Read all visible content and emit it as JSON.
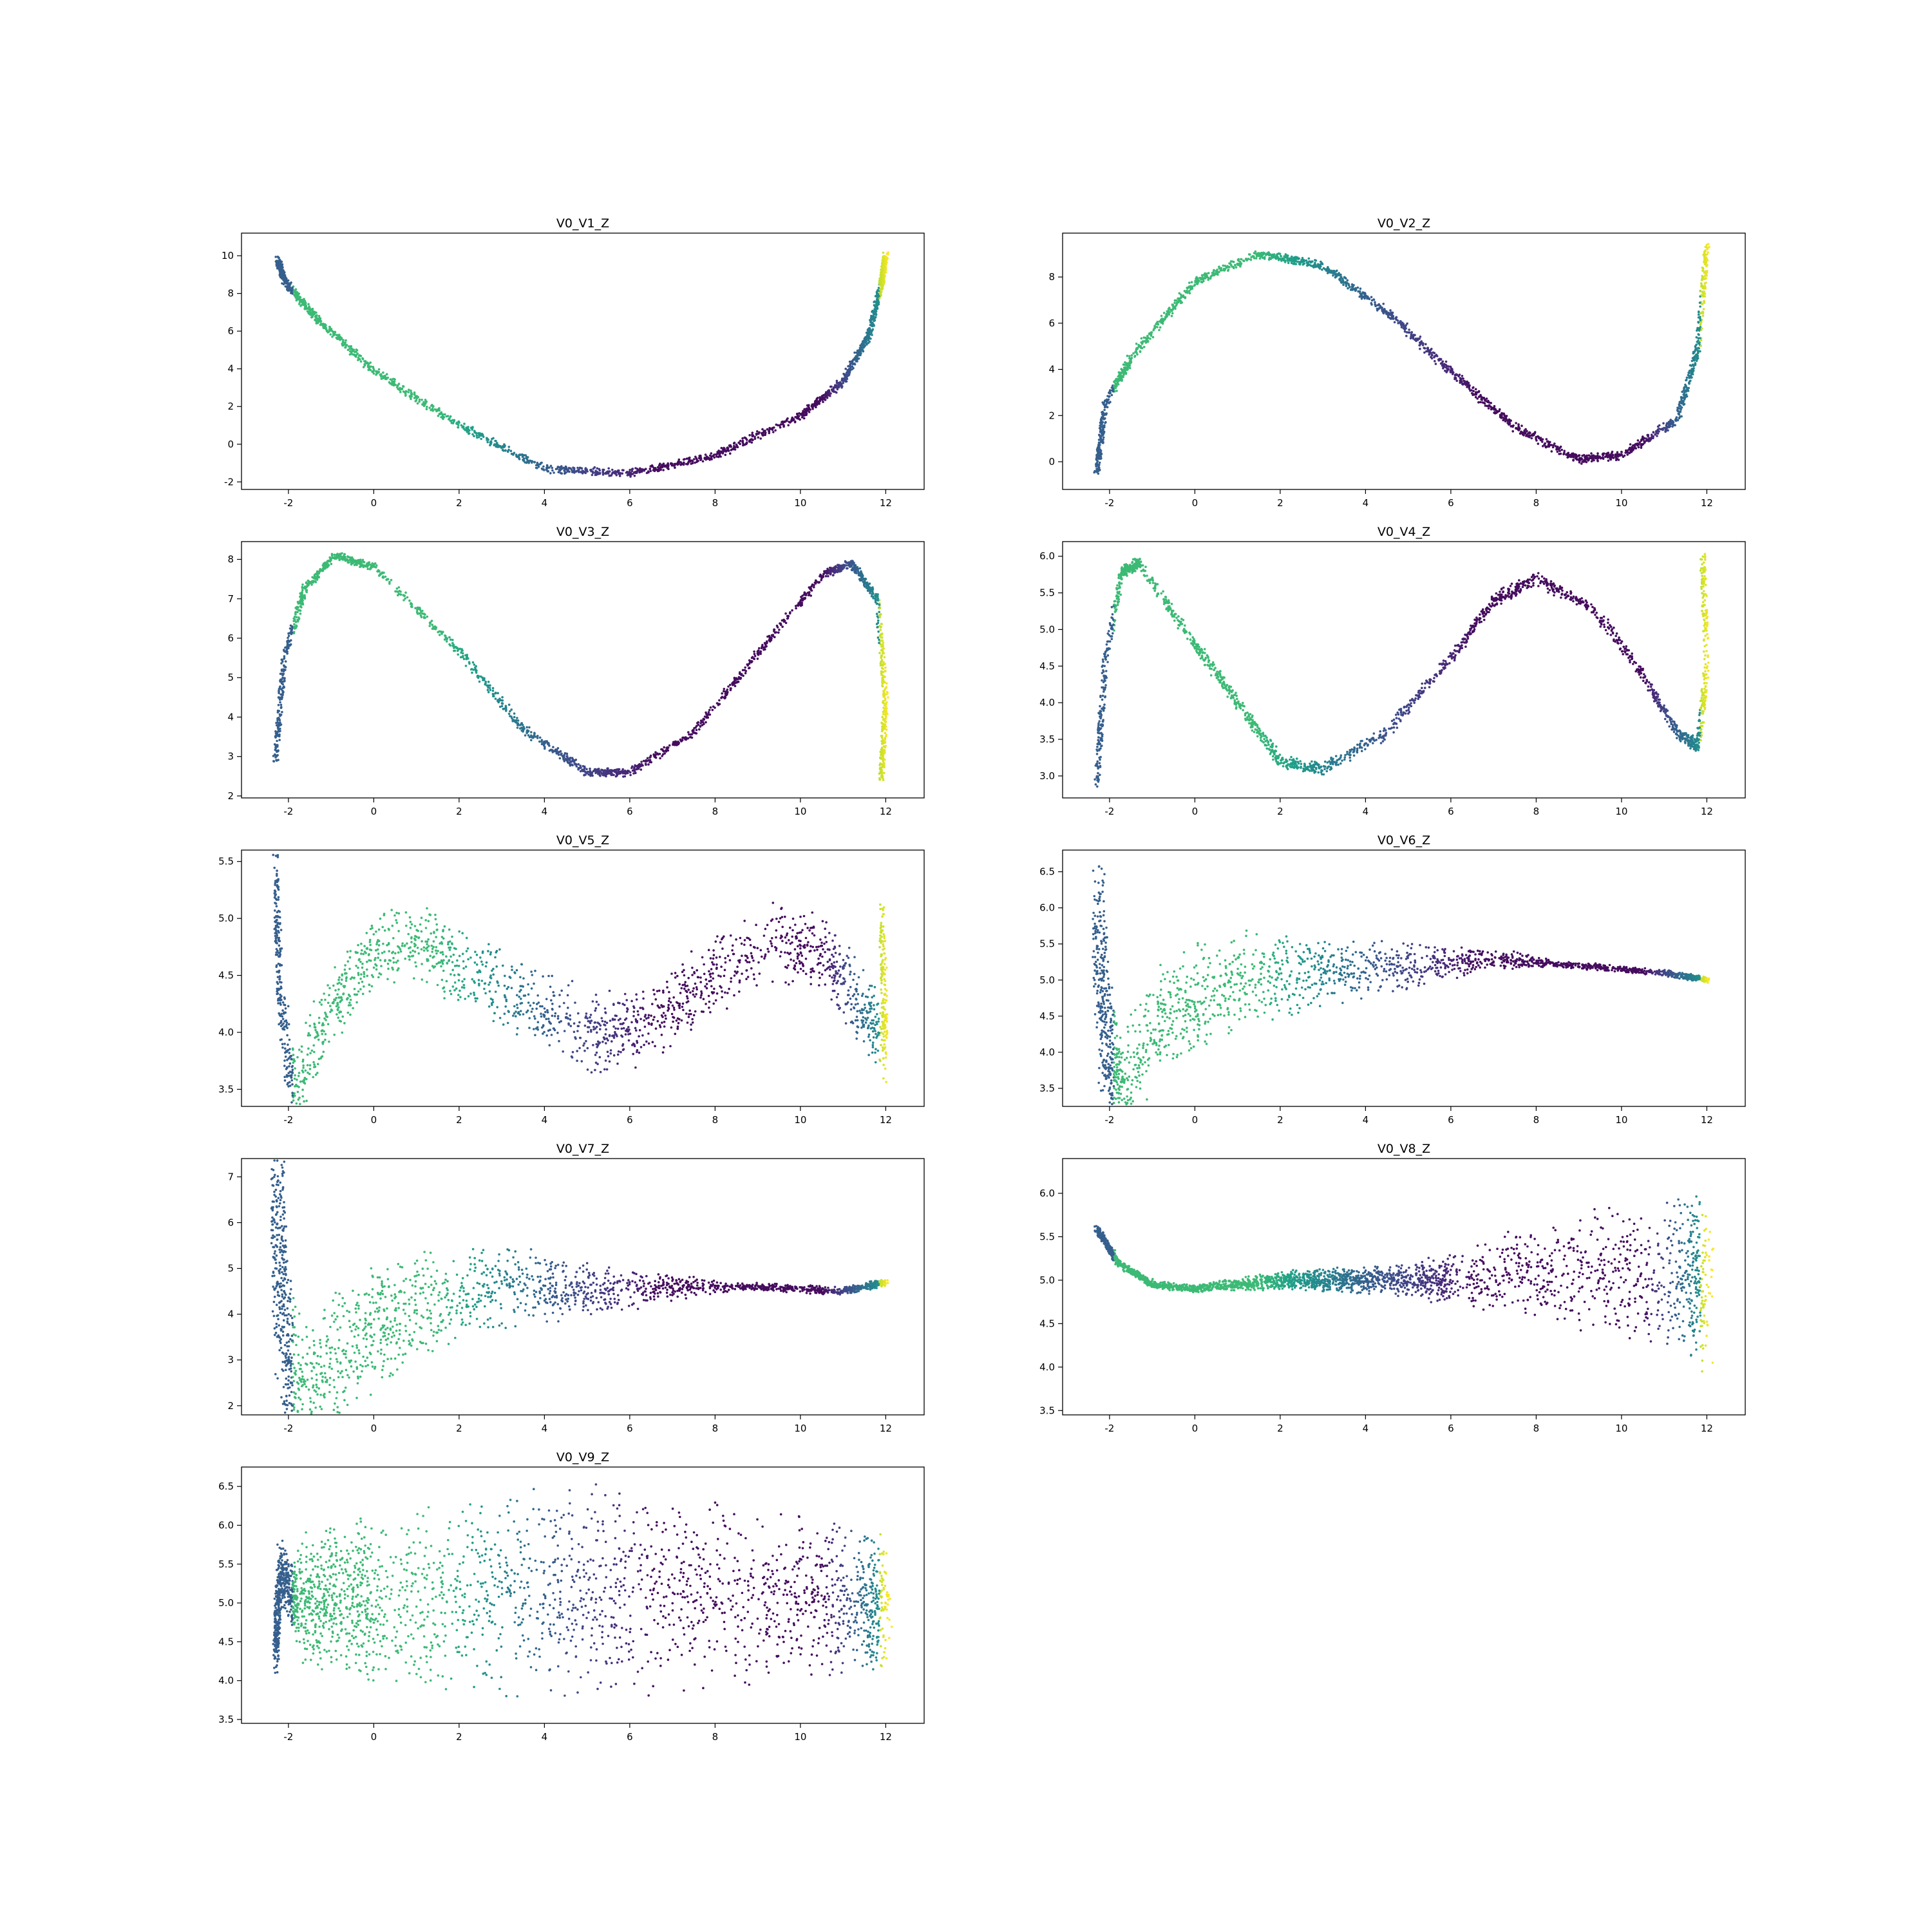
{
  "chart_data": [
    {
      "type": "scatter",
      "title": "V0_V1_Z",
      "xticks": [
        "-2",
        "0",
        "2",
        "4",
        "6",
        "8",
        "10",
        "12"
      ],
      "yticks": [
        "-2",
        "0",
        "2",
        "4",
        "6",
        "8",
        "10"
      ],
      "xlim": [
        -3.1,
        12.9
      ],
      "ylim": [
        -2.4,
        11.2
      ],
      "curve": [
        [
          -2.25,
          9.8
        ],
        [
          -2.1,
          8.7
        ],
        [
          -1.4,
          6.8
        ],
        [
          0,
          3.9
        ],
        [
          2,
          1.0
        ],
        [
          4,
          -1.3
        ],
        [
          6,
          -1.55
        ],
        [
          8,
          -0.6
        ],
        [
          10,
          1.5
        ],
        [
          11,
          3.3
        ],
        [
          11.6,
          5.8
        ],
        [
          11.9,
          8.5
        ],
        [
          12,
          10.1
        ]
      ],
      "spread": 0.25
    },
    {
      "type": "scatter",
      "title": "V0_V2_Z",
      "xticks": [
        "-2",
        "0",
        "2",
        "4",
        "6",
        "8",
        "10",
        "12"
      ],
      "yticks": [
        "0",
        "2",
        "4",
        "6",
        "8"
      ],
      "xlim": [
        -3.1,
        12.9
      ],
      "ylim": [
        -1.2,
        9.9
      ],
      "curve": [
        [
          -2.3,
          -0.5
        ],
        [
          -2.1,
          2.5
        ],
        [
          -1.5,
          4.5
        ],
        [
          0,
          7.8
        ],
        [
          1.5,
          9.0
        ],
        [
          3,
          8.5
        ],
        [
          4.5,
          6.5
        ],
        [
          6,
          3.9
        ],
        [
          7.5,
          1.5
        ],
        [
          9,
          0.1
        ],
        [
          10,
          0.3
        ],
        [
          11.3,
          1.8
        ],
        [
          11.8,
          5.0
        ],
        [
          12,
          9.4
        ]
      ],
      "spread": 0.22
    },
    {
      "type": "scatter",
      "title": "V0_V3_Z",
      "xticks": [
        "-2",
        "0",
        "2",
        "4",
        "6",
        "8",
        "10",
        "12"
      ],
      "yticks": [
        "2",
        "3",
        "4",
        "5",
        "6",
        "7",
        "8"
      ],
      "xlim": [
        -3.1,
        12.9
      ],
      "ylim": [
        1.95,
        8.45
      ],
      "curve": [
        [
          -2.3,
          2.9
        ],
        [
          -2.1,
          5.5
        ],
        [
          -1.6,
          7.3
        ],
        [
          -0.9,
          8.1
        ],
        [
          0,
          7.8
        ],
        [
          2,
          5.7
        ],
        [
          3.5,
          3.7
        ],
        [
          5,
          2.6
        ],
        [
          6,
          2.6
        ],
        [
          7.5,
          3.6
        ],
        [
          9,
          5.6
        ],
        [
          10.5,
          7.6
        ],
        [
          11.2,
          7.9
        ],
        [
          11.8,
          7.0
        ],
        [
          12,
          4.5
        ],
        [
          11.9,
          2.4
        ]
      ],
      "spread": 0.12
    },
    {
      "type": "scatter",
      "title": "V0_V4_Z",
      "xticks": [
        "-2",
        "0",
        "2",
        "4",
        "6",
        "8",
        "10",
        "12"
      ],
      "yticks": [
        "3.0",
        "3.5",
        "4.0",
        "4.5",
        "5.0",
        "5.5",
        "6.0"
      ],
      "xlim": [
        -3.1,
        12.9
      ],
      "ylim": [
        2.7,
        6.2
      ],
      "curve": [
        [
          -2.3,
          2.9
        ],
        [
          -2.1,
          4.6
        ],
        [
          -1.7,
          5.8
        ],
        [
          -1.3,
          5.9
        ],
        [
          0,
          4.8
        ],
        [
          1,
          4.0
        ],
        [
          2,
          3.2
        ],
        [
          3,
          3.1
        ],
        [
          4.5,
          3.6
        ],
        [
          6,
          4.6
        ],
        [
          7,
          5.4
        ],
        [
          8,
          5.7
        ],
        [
          9.3,
          5.3
        ],
        [
          10.5,
          4.4
        ],
        [
          11.3,
          3.6
        ],
        [
          11.8,
          3.4
        ],
        [
          12,
          4.5
        ],
        [
          11.9,
          6.0
        ]
      ],
      "spread": 0.1
    },
    {
      "type": "scatter",
      "title": "V0_V5_Z",
      "xticks": [
        "-2",
        "0",
        "2",
        "4",
        "6",
        "8",
        "10",
        "12"
      ],
      "yticks": [
        "3.5",
        "4.0",
        "4.5",
        "5.0",
        "5.5"
      ],
      "xlim": [
        -3.1,
        12.9
      ],
      "ylim": [
        3.35,
        5.6
      ],
      "curve": [
        [
          -2.3,
          5.5
        ],
        [
          -2.2,
          4.3
        ],
        [
          -1.9,
          3.5
        ],
        [
          -1,
          4.2
        ],
        [
          0,
          4.7
        ],
        [
          1,
          4.8
        ],
        [
          2,
          4.6
        ],
        [
          3.5,
          4.3
        ],
        [
          5,
          4.0
        ],
        [
          6,
          4.0
        ],
        [
          7,
          4.2
        ],
        [
          8,
          4.5
        ],
        [
          9.5,
          4.8
        ],
        [
          10.5,
          4.7
        ],
        [
          11.3,
          4.3
        ],
        [
          12,
          3.9
        ],
        [
          11.9,
          5.0
        ]
      ],
      "spread": 0.38
    },
    {
      "type": "scatter",
      "title": "V0_V6_Z",
      "xticks": [
        "-2",
        "0",
        "2",
        "4",
        "6",
        "8",
        "10",
        "12"
      ],
      "yticks": [
        "3.5",
        "4.0",
        "4.5",
        "5.0",
        "5.5",
        "6.0",
        "6.5"
      ],
      "xlim": [
        -3.1,
        12.9
      ],
      "ylim": [
        3.25,
        6.8
      ],
      "curve": [
        [
          -2.3,
          6.2
        ],
        [
          -2.1,
          4.2
        ],
        [
          -1.8,
          3.5
        ],
        [
          -0.5,
          4.6
        ],
        [
          1,
          5.0
        ],
        [
          3,
          5.1
        ],
        [
          5,
          5.2
        ],
        [
          7,
          5.3
        ],
        [
          9,
          5.2
        ],
        [
          11,
          5.1
        ],
        [
          12,
          5.0
        ]
      ],
      "spread": 1.0,
      "taper": 9
    },
    {
      "type": "scatter",
      "title": "V0_V7_Z",
      "xticks": [
        "-2",
        "0",
        "2",
        "4",
        "6",
        "8",
        "10",
        "12"
      ],
      "yticks": [
        "2",
        "3",
        "4",
        "5",
        "6",
        "7"
      ],
      "xlim": [
        -3.1,
        12.9
      ],
      "ylim": [
        1.8,
        7.4
      ],
      "curve": [
        [
          -2.3,
          6.9
        ],
        [
          -2.2,
          4.5
        ],
        [
          -1.9,
          2.2
        ],
        [
          -0.5,
          3.4
        ],
        [
          1,
          4.2
        ],
        [
          3,
          4.6
        ],
        [
          5,
          4.5
        ],
        [
          7,
          4.6
        ],
        [
          9,
          4.6
        ],
        [
          11,
          4.5
        ],
        [
          12,
          4.7
        ]
      ],
      "spread": 1.9,
      "taper": 9
    },
    {
      "type": "scatter",
      "title": "V0_V8_Z",
      "xticks": [
        "-2",
        "0",
        "2",
        "4",
        "6",
        "8",
        "10",
        "12"
      ],
      "yticks": [
        "3.5",
        "4.0",
        "4.5",
        "5.0",
        "5.5",
        "6.0"
      ],
      "xlim": [
        -3.1,
        12.9
      ],
      "ylim": [
        3.45,
        6.4
      ],
      "curve": [
        [
          -2.3,
          5.6
        ],
        [
          -1.8,
          5.2
        ],
        [
          -1,
          4.95
        ],
        [
          0,
          4.9
        ],
        [
          1,
          4.95
        ],
        [
          2,
          5.0
        ],
        [
          3,
          5.0
        ],
        [
          4,
          5.0
        ],
        [
          5,
          5.0
        ],
        [
          6,
          5.0
        ],
        [
          8,
          5.1
        ],
        [
          10,
          5.1
        ],
        [
          11.5,
          5.1
        ],
        [
          12,
          4.9
        ]
      ],
      "spread": 0.0,
      "flare": 1.05
    },
    {
      "type": "scatter",
      "title": "V0_V9_Z",
      "xticks": [
        "-2",
        "0",
        "2",
        "4",
        "6",
        "8",
        "10",
        "12"
      ],
      "yticks": [
        "3.5",
        "4.0",
        "4.5",
        "5.0",
        "5.5",
        "6.0",
        "6.5"
      ],
      "xlim": [
        -3.1,
        12.9
      ],
      "ylim": [
        3.45,
        6.75
      ],
      "curve": [
        [
          -2.3,
          4.4
        ],
        [
          -2.2,
          5.4
        ],
        [
          -1.8,
          5.0
        ],
        [
          -1,
          5.1
        ],
        [
          0,
          5.0
        ],
        [
          2,
          5.1
        ],
        [
          4,
          5.1
        ],
        [
          6,
          5.2
        ],
        [
          8,
          5.15
        ],
        [
          10,
          5.1
        ],
        [
          11.5,
          5.0
        ],
        [
          12,
          5.0
        ]
      ],
      "spread": 1.05,
      "blob": true
    }
  ]
}
